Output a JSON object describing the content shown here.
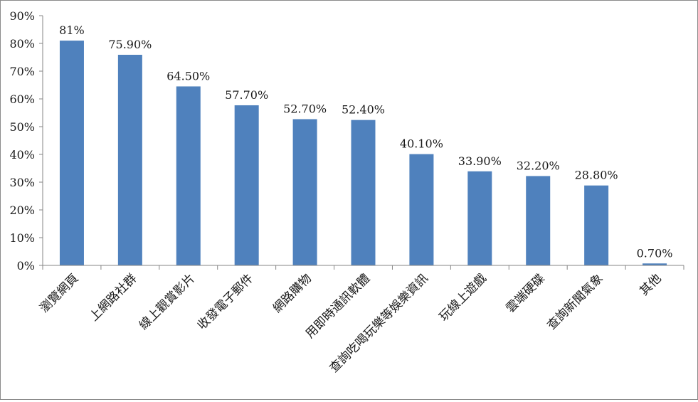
{
  "chart_data": {
    "type": "bar",
    "title": "",
    "xlabel": "",
    "ylabel": "",
    "ylim": [
      0,
      90
    ],
    "ytick_step": 10,
    "ytick_format": "%",
    "grid": false,
    "legend": "none",
    "bar_color": "#4f81bd",
    "categories": [
      "瀏覽網頁",
      "上網路社群",
      "線上觀賞影片",
      "收發電子郵件",
      "網路購物",
      "用即時通訊軟體",
      "查詢吃喝玩樂等娛樂資訊",
      "玩線上遊戲",
      "雲端硬碟",
      "查詢新聞氣象",
      "其他"
    ],
    "values": [
      81,
      75.9,
      64.5,
      57.7,
      52.7,
      52.4,
      40.1,
      33.9,
      32.2,
      28.8,
      0.7
    ],
    "data_labels": [
      "81%",
      "75.90%",
      "64.50%",
      "57.70%",
      "52.70%",
      "52.40%",
      "40.10%",
      "33.90%",
      "32.20%",
      "28.80%",
      "0.70%"
    ]
  }
}
